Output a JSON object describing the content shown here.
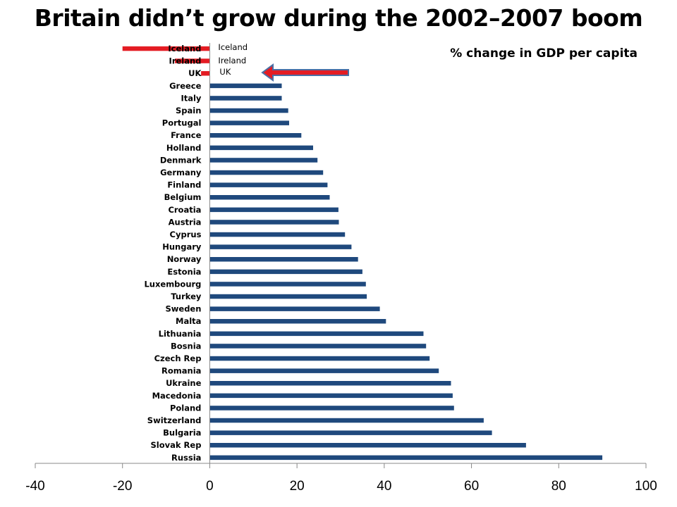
{
  "chart_data": {
    "type": "bar",
    "orientation": "horizontal",
    "title": "Britain didn’t grow during the 2002–2007 boom",
    "subtitle": "% change in GDP per capita",
    "xlim": [
      -40,
      100
    ],
    "xticks": [
      "-40",
      "-20",
      "0",
      "20",
      "40",
      "60",
      "80",
      "100"
    ],
    "grid": false,
    "colors": {
      "default": "#1f497d",
      "highlight": "#e41c23",
      "arrow_fill": "#e41c23",
      "arrow_outline": "#4a6fa5"
    },
    "categories": [
      "Iceland",
      "Ireland",
      "UK",
      "Greece",
      "Italy",
      "Spain",
      "Portugal",
      "France",
      "Holland",
      "Denmark",
      "Germany",
      "Finland",
      "Belgium",
      "Croatia",
      "Austria",
      "Cyprus",
      "Hungary",
      "Norway",
      "Estonia",
      "Luxembourg",
      "Turkey",
      "Sweden",
      "Malta",
      "Lithuania",
      "Bosnia",
      "Czech Rep",
      "Romania",
      "Ukraine",
      "Macedonia",
      "Poland",
      "Switzerland",
      "Bulgaria",
      "Slovak Rep",
      "Russia"
    ],
    "values": [
      -20,
      -8,
      -2,
      16.5,
      16.5,
      18,
      18.2,
      21,
      23.7,
      24.7,
      26,
      27,
      27.5,
      29.5,
      29.6,
      31,
      32.5,
      34,
      35,
      35.8,
      36,
      39,
      40.4,
      49,
      49.6,
      50.4,
      52.5,
      55.3,
      55.7,
      56,
      62.8,
      64.7,
      72.5,
      90
    ],
    "highlighted": [
      "Iceland",
      "Ireland",
      "UK"
    ],
    "annotations": [
      "Iceland",
      "Ireland",
      "UK"
    ]
  }
}
